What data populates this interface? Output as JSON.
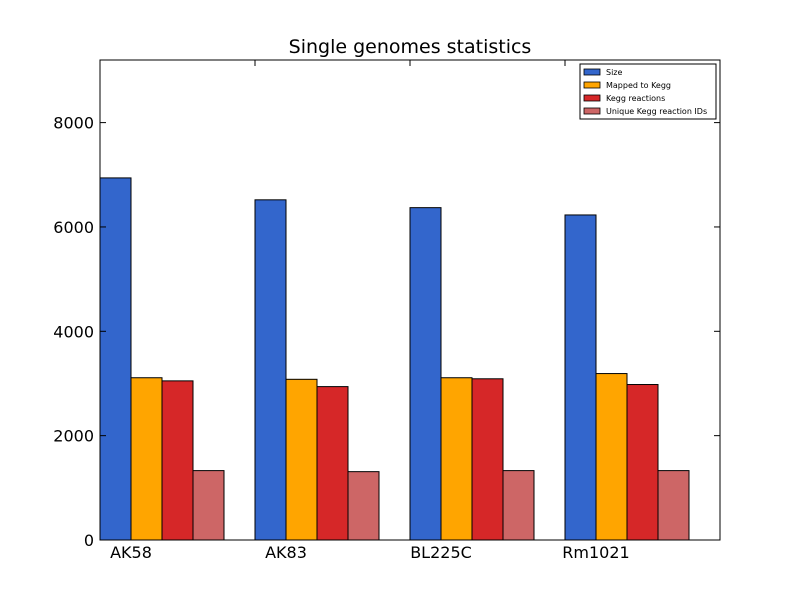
{
  "chart_data": {
    "type": "bar",
    "title": "Single genomes statistics",
    "xlabel": "",
    "ylabel": "",
    "categories": [
      "AK58",
      "AK83",
      "BL225C",
      "Rm1021"
    ],
    "ylim": [
      0,
      9200
    ],
    "yticks": [
      0,
      2000,
      4000,
      6000,
      8000
    ],
    "grid": false,
    "legend_position": "top-right",
    "series": [
      {
        "name": "Size",
        "color": "#3366cc",
        "values": [
          6940,
          6520,
          6370,
          6230
        ]
      },
      {
        "name": "Mapped to Kegg",
        "color": "#ffa500",
        "values": [
          3110,
          3080,
          3110,
          3190
        ]
      },
      {
        "name": "Kegg reactions",
        "color": "#d62728",
        "values": [
          3050,
          2940,
          3090,
          2980
        ]
      },
      {
        "name": "Unique Kegg reaction IDs",
        "color": "#cd6666",
        "values": [
          1330,
          1310,
          1330,
          1330
        ]
      }
    ]
  }
}
